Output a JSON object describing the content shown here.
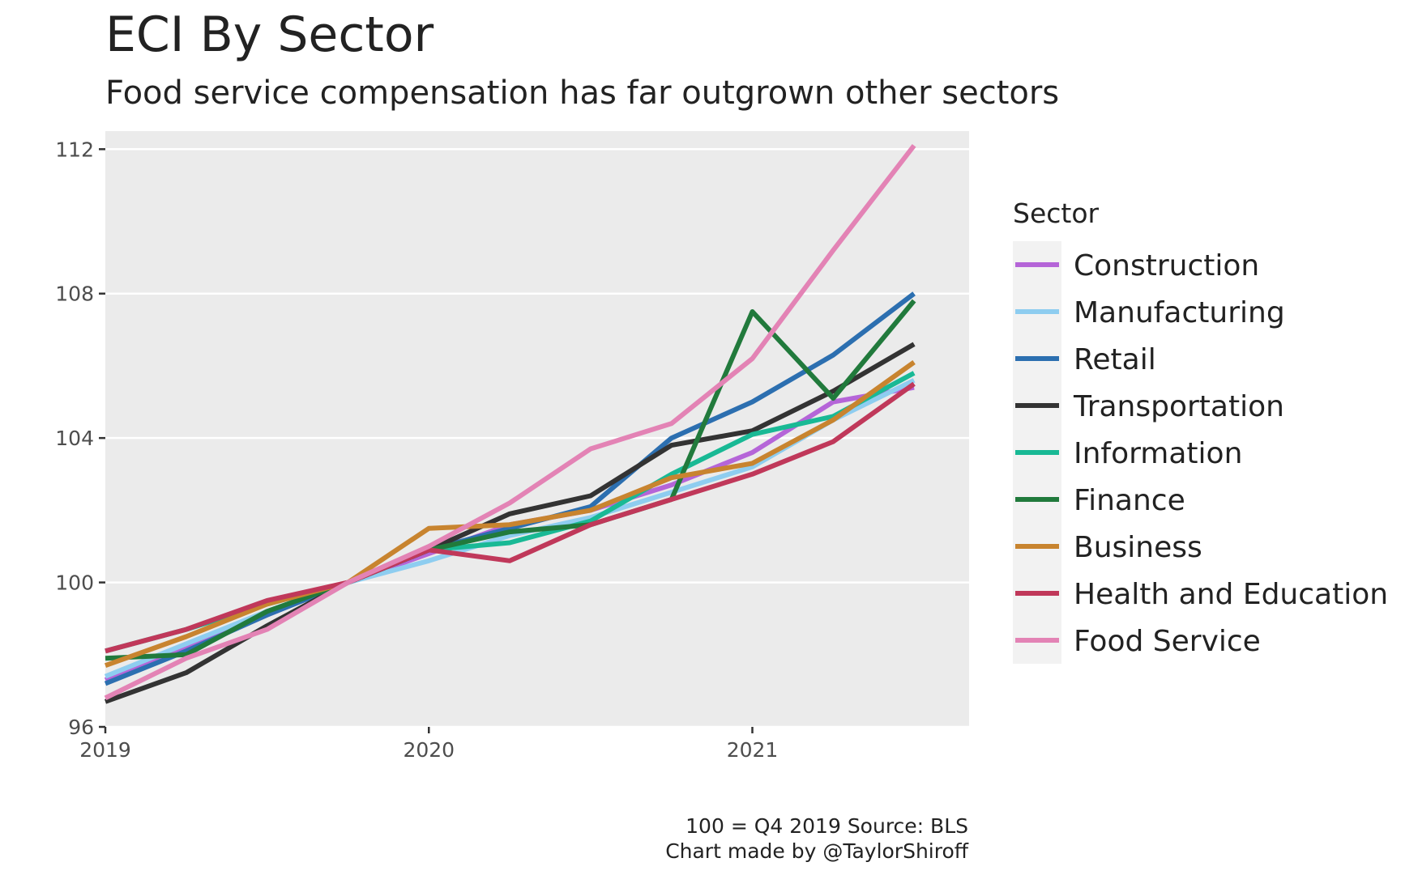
{
  "chart_data": {
    "type": "line",
    "title": "ECI By Sector",
    "subtitle": "Food service compensation has far outgrown other sectors",
    "caption_lines": [
      "100 = Q4 2019 Source: BLS",
      "Chart made by @TaylorShiroff"
    ],
    "legend_title": "Sector",
    "legend_position": "right",
    "grid": true,
    "xlim": [
      2019,
      2021.67
    ],
    "ylim": [
      96,
      112.5
    ],
    "x_ticks": [
      2019,
      2020,
      2021
    ],
    "y_ticks": [
      96,
      100,
      104,
      108,
      112
    ],
    "x": [
      2019.0,
      2019.25,
      2019.5,
      2019.75,
      2020.0,
      2020.25,
      2020.5,
      2020.75,
      2021.0,
      2021.25,
      2021.5
    ],
    "series": [
      {
        "name": "Construction",
        "color": "#b565d8",
        "values": [
          97.3,
          98.2,
          99.1,
          100.0,
          100.8,
          101.6,
          102.0,
          102.7,
          103.6,
          105.0,
          105.4
        ]
      },
      {
        "name": "Manufacturing",
        "color": "#8ecdf0",
        "values": [
          97.4,
          98.3,
          99.2,
          100.0,
          100.6,
          101.3,
          101.8,
          102.5,
          103.2,
          104.5,
          105.6
        ]
      },
      {
        "name": "Retail",
        "color": "#2c6fb0",
        "values": [
          97.2,
          98.1,
          99.1,
          100.0,
          100.9,
          101.5,
          102.1,
          104.0,
          105.0,
          106.3,
          108.0
        ]
      },
      {
        "name": "Transportation",
        "color": "#333333",
        "values": [
          96.7,
          97.5,
          98.8,
          100.0,
          100.9,
          101.9,
          102.4,
          103.8,
          104.2,
          105.3,
          106.6
        ]
      },
      {
        "name": "Information",
        "color": "#19b995",
        "values": [
          98.1,
          98.7,
          99.4,
          100.0,
          100.9,
          101.1,
          101.7,
          103.0,
          104.1,
          104.6,
          105.8
        ]
      },
      {
        "name": "Finance",
        "color": "#217a3c",
        "values": [
          97.9,
          98.0,
          99.2,
          100.0,
          100.9,
          101.4,
          101.6,
          102.3,
          107.5,
          105.1,
          107.8
        ]
      },
      {
        "name": "Business",
        "color": "#c8842f",
        "values": [
          97.7,
          98.5,
          99.4,
          100.0,
          101.5,
          101.6,
          102.0,
          102.9,
          103.3,
          104.5,
          106.1
        ]
      },
      {
        "name": "Health and Education",
        "color": "#c0385a",
        "values": [
          98.1,
          98.7,
          99.5,
          100.0,
          100.9,
          100.6,
          101.6,
          102.3,
          103.0,
          103.9,
          105.5
        ]
      },
      {
        "name": "Food Service",
        "color": "#e383b5",
        "values": [
          96.8,
          97.9,
          98.7,
          100.0,
          101.0,
          102.2,
          103.7,
          104.4,
          106.2,
          109.2,
          112.1
        ]
      }
    ]
  }
}
